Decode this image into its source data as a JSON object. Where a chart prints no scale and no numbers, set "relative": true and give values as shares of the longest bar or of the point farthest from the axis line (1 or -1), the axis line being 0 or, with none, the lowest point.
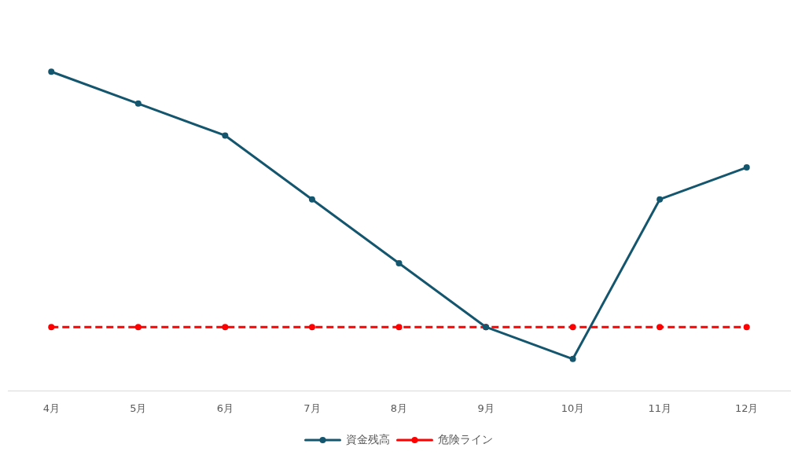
{
  "chart_data": {
    "type": "line",
    "relative": true,
    "categories": [
      "4月",
      "5月",
      "6月",
      "7月",
      "8月",
      "9月",
      "10月",
      "11月",
      "12月"
    ],
    "series": [
      {
        "name": "資金残高",
        "color": "#15566f",
        "values": [
          1,
          0.9,
          0.8,
          0.6,
          0.4,
          0.2,
          0.1,
          0.6,
          0.7
        ]
      },
      {
        "name": "危険ライン",
        "color": "#ff0000",
        "line_style": "dashed",
        "values": [
          0.2,
          0.2,
          0.2,
          0.2,
          0.2,
          0.2,
          0.2,
          0.2,
          0.2
        ]
      }
    ],
    "marker": "circle",
    "line_style": "solid",
    "grid": false,
    "legend": "bottom"
  }
}
